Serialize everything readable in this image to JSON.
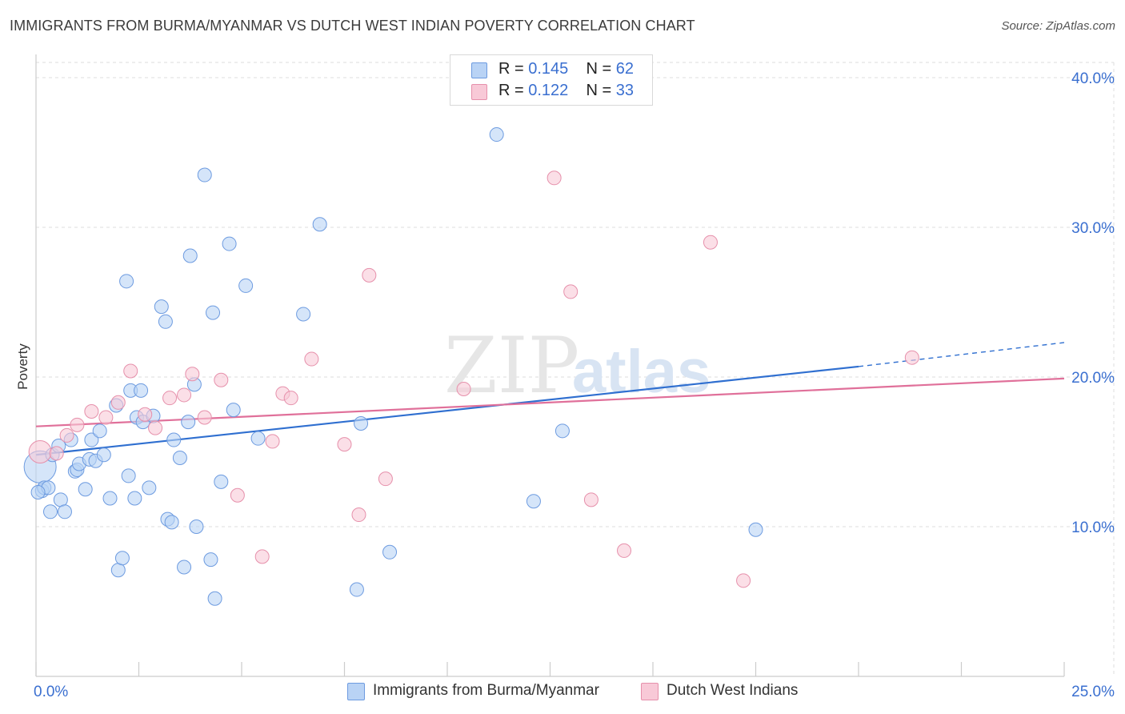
{
  "header": {
    "title": "IMMIGRANTS FROM BURMA/MYANMAR VS DUTCH WEST INDIAN POVERTY CORRELATION CHART",
    "source": "Source: ZipAtlas.com"
  },
  "legend": {
    "series1": {
      "r_label": "R = ",
      "r_value": "0.145",
      "n_label": "N = ",
      "n_value": "62"
    },
    "series2": {
      "r_label": "R = ",
      "r_value": "0.122",
      "n_label": "N = ",
      "n_value": "33"
    }
  },
  "bottom_legend": {
    "series1": "Immigrants from Burma/Myanmar",
    "series2": "Dutch West Indians"
  },
  "colors": {
    "blue_fill": "#b9d3f5",
    "blue_stroke": "#6d9be0",
    "blue_line": "#2f6fd0",
    "pink_fill": "#f8c9d7",
    "pink_stroke": "#e690ab",
    "pink_line": "#e0709a",
    "axis_text": "#3a6fd0",
    "grid": "#dddddd"
  },
  "chart_data": {
    "type": "scatter",
    "title": "IMMIGRANTS FROM BURMA/MYANMAR VS DUTCH WEST INDIAN POVERTY CORRELATION CHART",
    "ylabel": "Poverty",
    "xlabel": "",
    "xlim": [
      0,
      25
    ],
    "ylim": [
      0,
      40
    ],
    "x_tick_labels": [
      "0.0%",
      "25.0%"
    ],
    "y_ticks": [
      10,
      20,
      30,
      40
    ],
    "y_tick_labels": [
      "10.0%",
      "20.0%",
      "30.0%",
      "40.0%"
    ],
    "grid": true,
    "legend_placement": "top-center",
    "watermark": {
      "text1": "ZIP",
      "text2": "atlas"
    },
    "series": [
      {
        "name": "Immigrants from Burma/Myanmar",
        "color": "#6d9be0",
        "trendline": {
          "x": [
            0,
            20
          ],
          "y": [
            14.8,
            20.7
          ],
          "dashed_to": [
            25,
            22.3
          ]
        },
        "points": [
          [
            0.1,
            14.0
          ],
          [
            0.15,
            12.4
          ],
          [
            0.2,
            12.6
          ],
          [
            0.3,
            12.6
          ],
          [
            0.35,
            11.0
          ],
          [
            0.4,
            14.8
          ],
          [
            0.55,
            15.4
          ],
          [
            0.6,
            11.8
          ],
          [
            0.7,
            11.0
          ],
          [
            0.85,
            15.8
          ],
          [
            0.95,
            13.7
          ],
          [
            1.0,
            13.8
          ],
          [
            1.05,
            14.2
          ],
          [
            1.2,
            12.5
          ],
          [
            1.3,
            14.5
          ],
          [
            1.35,
            15.8
          ],
          [
            1.45,
            14.4
          ],
          [
            1.55,
            16.4
          ],
          [
            1.65,
            14.8
          ],
          [
            1.8,
            11.9
          ],
          [
            1.95,
            18.1
          ],
          [
            2.0,
            7.1
          ],
          [
            2.1,
            7.9
          ],
          [
            2.2,
            26.4
          ],
          [
            2.25,
            13.4
          ],
          [
            2.3,
            19.1
          ],
          [
            2.4,
            11.9
          ],
          [
            2.45,
            17.3
          ],
          [
            2.55,
            19.1
          ],
          [
            2.6,
            17.0
          ],
          [
            2.75,
            12.6
          ],
          [
            2.85,
            17.4
          ],
          [
            3.05,
            24.7
          ],
          [
            3.15,
            23.7
          ],
          [
            3.2,
            10.5
          ],
          [
            3.3,
            10.3
          ],
          [
            3.35,
            15.8
          ],
          [
            3.5,
            14.6
          ],
          [
            3.6,
            7.3
          ],
          [
            3.7,
            17.0
          ],
          [
            3.75,
            28.1
          ],
          [
            3.85,
            19.5
          ],
          [
            3.9,
            10.0
          ],
          [
            4.1,
            33.5
          ],
          [
            4.25,
            7.8
          ],
          [
            4.3,
            24.3
          ],
          [
            4.35,
            5.2
          ],
          [
            4.5,
            13.0
          ],
          [
            4.7,
            28.9
          ],
          [
            4.8,
            17.8
          ],
          [
            5.1,
            26.1
          ],
          [
            5.4,
            15.9
          ],
          [
            6.5,
            24.2
          ],
          [
            6.9,
            30.2
          ],
          [
            7.8,
            5.8
          ],
          [
            7.9,
            16.9
          ],
          [
            8.6,
            8.3
          ],
          [
            11.2,
            36.2
          ],
          [
            12.1,
            11.7
          ],
          [
            12.8,
            16.4
          ],
          [
            17.5,
            9.8
          ],
          [
            0.05,
            12.3
          ]
        ]
      },
      {
        "name": "Dutch West Indians",
        "color": "#e690ab",
        "trendline": {
          "x": [
            0,
            25
          ],
          "y": [
            16.7,
            19.9
          ]
        },
        "points": [
          [
            0.1,
            15.0
          ],
          [
            0.5,
            14.9
          ],
          [
            0.75,
            16.1
          ],
          [
            1.0,
            16.8
          ],
          [
            1.35,
            17.7
          ],
          [
            1.7,
            17.3
          ],
          [
            2.0,
            18.3
          ],
          [
            2.3,
            20.4
          ],
          [
            2.65,
            17.5
          ],
          [
            2.9,
            16.6
          ],
          [
            3.25,
            18.6
          ],
          [
            3.6,
            18.8
          ],
          [
            3.8,
            20.2
          ],
          [
            4.1,
            17.3
          ],
          [
            4.5,
            19.8
          ],
          [
            4.9,
            12.1
          ],
          [
            5.5,
            8.0
          ],
          [
            5.75,
            15.7
          ],
          [
            6.0,
            18.9
          ],
          [
            6.2,
            18.6
          ],
          [
            6.7,
            21.2
          ],
          [
            7.5,
            15.5
          ],
          [
            7.85,
            10.8
          ],
          [
            8.1,
            26.8
          ],
          [
            8.5,
            13.2
          ],
          [
            10.4,
            19.2
          ],
          [
            12.6,
            33.3
          ],
          [
            13.0,
            25.7
          ],
          [
            13.5,
            11.8
          ],
          [
            14.3,
            8.4
          ],
          [
            16.4,
            29.0
          ],
          [
            17.2,
            6.4
          ],
          [
            21.3,
            21.3
          ]
        ]
      }
    ]
  }
}
